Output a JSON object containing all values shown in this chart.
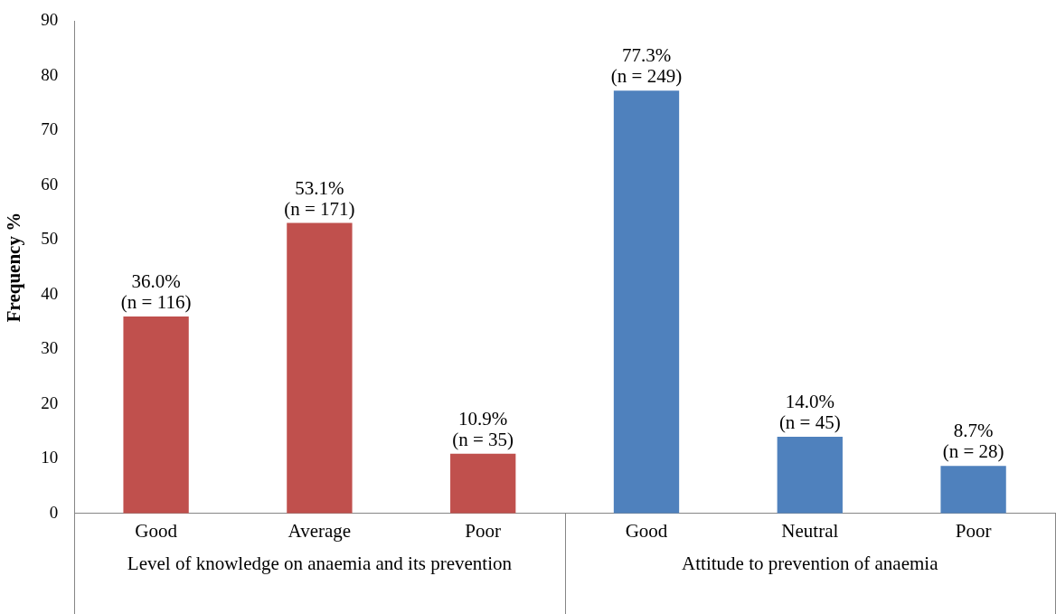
{
  "chart_data": {
    "type": "bar",
    "ylabel": "Frequency %",
    "categories": [
      "Good",
      "Average",
      "Poor",
      "Good",
      "Neutral",
      "Poor"
    ],
    "series": [
      {
        "name": "Level of knowledge on anaemia and its prevention",
        "color": "#c0504d",
        "values": [
          36.0,
          53.1,
          10.9,
          null,
          null,
          null
        ],
        "value_labels": [
          "36.0%\n(n = 116)",
          "53.1%\n(n = 171)",
          "10.9%\n(n = 35)",
          null,
          null,
          null
        ]
      },
      {
        "name": "Attitude to prevention of anaemia",
        "color": "#4f81bd",
        "values": [
          null,
          null,
          null,
          77.3,
          14.0,
          8.7
        ],
        "value_labels": [
          null,
          null,
          null,
          "77.3%\n(n = 249)",
          "14.0%\n(n = 45)",
          "8.7%\n(n = 28)"
        ]
      }
    ],
    "ylim": [
      0,
      90
    ],
    "yticks": [
      0,
      10,
      20,
      30,
      40,
      50,
      60,
      70,
      80,
      90
    ],
    "grid": false,
    "legend": false
  }
}
